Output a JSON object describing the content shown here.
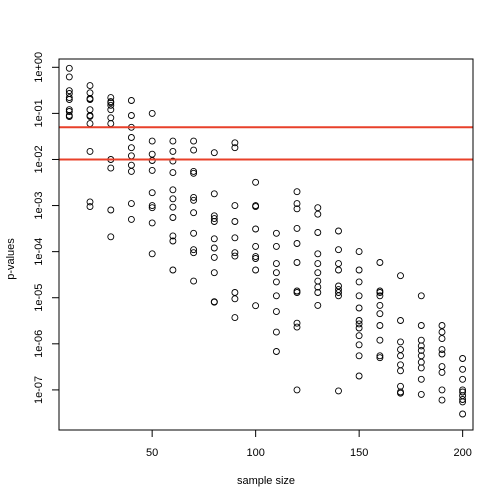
{
  "chart_data": {
    "type": "scatter",
    "title": "",
    "xlabel": "sample size",
    "ylabel": "p-values",
    "log_y": true,
    "xlim": [
      5,
      205
    ],
    "ylim_log10": [
      -7.87,
      0.18
    ],
    "x_ticks": [
      50,
      100,
      150,
      200
    ],
    "x_tick_labels": [
      "50",
      "100",
      "150",
      "200"
    ],
    "y_ticks_log10": [
      -7,
      -6,
      -5,
      -4,
      -3,
      -2,
      -1,
      0
    ],
    "y_tick_labels": [
      "1e-07",
      "1e-06",
      "1e-05",
      "1e-04",
      "1e-03",
      "1e-02",
      "1e-01",
      "1e+00"
    ],
    "grid": false,
    "reference_lines": [
      {
        "y": 0.05,
        "color": "#e8402a"
      },
      {
        "y": 0.01,
        "color": "#e8402a"
      }
    ],
    "point_color": "#000000",
    "points": [
      [
        10,
        0.95
      ],
      [
        10,
        0.62
      ],
      [
        10,
        0.31
      ],
      [
        10,
        0.27
      ],
      [
        10,
        0.22
      ],
      [
        10,
        0.2
      ],
      [
        10,
        0.12
      ],
      [
        10,
        0.11
      ],
      [
        10,
        0.09
      ],
      [
        10,
        0.085
      ],
      [
        20,
        0.4
      ],
      [
        20,
        0.28
      ],
      [
        20,
        0.21
      ],
      [
        20,
        0.2
      ],
      [
        20,
        0.12
      ],
      [
        20,
        0.09
      ],
      [
        20,
        0.086
      ],
      [
        20,
        0.06
      ],
      [
        20,
        0.015
      ],
      [
        20,
        0.0012
      ],
      [
        20,
        0.00095
      ],
      [
        30,
        0.22
      ],
      [
        30,
        0.18
      ],
      [
        30,
        0.17
      ],
      [
        30,
        0.15
      ],
      [
        30,
        0.12
      ],
      [
        30,
        0.08
      ],
      [
        30,
        0.06
      ],
      [
        30,
        0.01
      ],
      [
        30,
        0.0065
      ],
      [
        30,
        0.0008
      ],
      [
        30,
        0.00021
      ],
      [
        40,
        0.19
      ],
      [
        40,
        0.09
      ],
      [
        40,
        0.05
      ],
      [
        40,
        0.03
      ],
      [
        40,
        0.018
      ],
      [
        40,
        0.012
      ],
      [
        40,
        0.0075
      ],
      [
        40,
        0.0055
      ],
      [
        40,
        0.0011
      ],
      [
        40,
        0.0005
      ],
      [
        50,
        0.1
      ],
      [
        50,
        0.025
      ],
      [
        50,
        0.013
      ],
      [
        50,
        0.0095
      ],
      [
        50,
        0.0058
      ],
      [
        50,
        0.0019
      ],
      [
        50,
        0.001
      ],
      [
        50,
        0.0009
      ],
      [
        50,
        0.00042
      ],
      [
        50,
        9e-05
      ],
      [
        60,
        0.025
      ],
      [
        60,
        0.015
      ],
      [
        60,
        0.0092
      ],
      [
        60,
        0.0052
      ],
      [
        60,
        0.0022
      ],
      [
        60,
        0.0014
      ],
      [
        60,
        0.00092
      ],
      [
        60,
        0.00055
      ],
      [
        60,
        0.00022
      ],
      [
        60,
        0.00017
      ],
      [
        60,
        4e-05
      ],
      [
        70,
        0.025
      ],
      [
        70,
        0.016
      ],
      [
        70,
        0.0055
      ],
      [
        70,
        0.005
      ],
      [
        70,
        0.0015
      ],
      [
        70,
        0.0013
      ],
      [
        70,
        0.0007
      ],
      [
        70,
        0.00025
      ],
      [
        70,
        0.00011
      ],
      [
        70,
        9.5e-05
      ],
      [
        70,
        2.3e-05
      ],
      [
        80,
        0.014
      ],
      [
        80,
        0.0018
      ],
      [
        80,
        0.0006
      ],
      [
        80,
        0.00052
      ],
      [
        80,
        0.00045
      ],
      [
        80,
        0.00019
      ],
      [
        80,
        0.00012
      ],
      [
        80,
        7.5e-05
      ],
      [
        80,
        3.5e-05
      ],
      [
        80,
        8.2e-06
      ],
      [
        80,
        8e-06
      ],
      [
        90,
        0.023
      ],
      [
        90,
        0.018
      ],
      [
        90,
        0.001
      ],
      [
        90,
        0.00045
      ],
      [
        90,
        0.0002
      ],
      [
        90,
        9.5e-05
      ],
      [
        90,
        8e-05
      ],
      [
        90,
        1.3e-05
      ],
      [
        90,
        9.5e-06
      ],
      [
        90,
        3.7e-06
      ],
      [
        100,
        0.0032
      ],
      [
        100,
        0.001
      ],
      [
        100,
        0.00095
      ],
      [
        100,
        0.00031
      ],
      [
        100,
        0.00013
      ],
      [
        100,
        7.8e-05
      ],
      [
        100,
        7.1e-05
      ],
      [
        100,
        4e-05
      ],
      [
        100,
        6.7e-06
      ],
      [
        110,
        0.00025
      ],
      [
        110,
        0.00013
      ],
      [
        110,
        5.5e-05
      ],
      [
        110,
        3.5e-05
      ],
      [
        110,
        2.2e-05
      ],
      [
        110,
        1.1e-05
      ],
      [
        110,
        5e-06
      ],
      [
        110,
        1.8e-06
      ],
      [
        110,
        6.8e-07
      ],
      [
        120,
        0.002
      ],
      [
        120,
        0.0011
      ],
      [
        120,
        0.00085
      ],
      [
        120,
        0.00032
      ],
      [
        120,
        0.00015
      ],
      [
        120,
        5.8e-05
      ],
      [
        120,
        1.4e-05
      ],
      [
        120,
        1.3e-05
      ],
      [
        120,
        2.8e-06
      ],
      [
        120,
        2.3e-06
      ],
      [
        120,
        1e-07
      ],
      [
        130,
        0.0009
      ],
      [
        130,
        0.00065
      ],
      [
        130,
        0.00026
      ],
      [
        130,
        9e-05
      ],
      [
        130,
        5.5e-05
      ],
      [
        130,
        3.5e-05
      ],
      [
        130,
        2.3e-05
      ],
      [
        130,
        1.7e-05
      ],
      [
        130,
        1.3e-05
      ],
      [
        130,
        6.8e-06
      ],
      [
        140,
        0.00028
      ],
      [
        140,
        0.00011
      ],
      [
        140,
        5.5e-05
      ],
      [
        140,
        4e-05
      ],
      [
        140,
        1.8e-05
      ],
      [
        140,
        1.5e-05
      ],
      [
        140,
        1.3e-05
      ],
      [
        140,
        1.1e-05
      ],
      [
        140,
        9.5e-08
      ],
      [
        150,
        0.0001
      ],
      [
        150,
        4e-05
      ],
      [
        150,
        2.2e-05
      ],
      [
        150,
        1.1e-05
      ],
      [
        150,
        6e-06
      ],
      [
        150,
        3.2e-06
      ],
      [
        150,
        2.7e-06
      ],
      [
        150,
        2.2e-06
      ],
      [
        150,
        1.5e-06
      ],
      [
        150,
        9.5e-07
      ],
      [
        150,
        5.5e-07
      ],
      [
        150,
        2e-07
      ],
      [
        160,
        5.8e-05
      ],
      [
        160,
        1.4e-05
      ],
      [
        160,
        1.3e-05
      ],
      [
        160,
        1.1e-05
      ],
      [
        160,
        6.8e-06
      ],
      [
        160,
        4.5e-06
      ],
      [
        160,
        2.5e-06
      ],
      [
        160,
        1.2e-06
      ],
      [
        160,
        5.5e-07
      ],
      [
        160,
        5e-07
      ],
      [
        170,
        3e-05
      ],
      [
        170,
        3.2e-06
      ],
      [
        170,
        1.1e-06
      ],
      [
        170,
        7.5e-07
      ],
      [
        170,
        5.5e-07
      ],
      [
        170,
        3.5e-07
      ],
      [
        170,
        2.6e-07
      ],
      [
        170,
        1.2e-07
      ],
      [
        170,
        9e-08
      ],
      [
        170,
        8.5e-08
      ],
      [
        180,
        1.1e-05
      ],
      [
        180,
        2.5e-06
      ],
      [
        180,
        1.2e-06
      ],
      [
        180,
        9e-07
      ],
      [
        180,
        7.2e-07
      ],
      [
        180,
        5.5e-07
      ],
      [
        180,
        4e-07
      ],
      [
        180,
        3e-07
      ],
      [
        180,
        1.7e-07
      ],
      [
        180,
        8e-08
      ],
      [
        190,
        2.5e-06
      ],
      [
        190,
        1.8e-06
      ],
      [
        190,
        1.3e-06
      ],
      [
        190,
        7.5e-07
      ],
      [
        190,
        6e-07
      ],
      [
        190,
        3.2e-07
      ],
      [
        190,
        2.4e-07
      ],
      [
        190,
        1e-07
      ],
      [
        190,
        6e-08
      ],
      [
        200,
        4.8e-07
      ],
      [
        200,
        2.8e-07
      ],
      [
        200,
        1.7e-07
      ],
      [
        200,
        1e-07
      ],
      [
        200,
        9e-08
      ],
      [
        200,
        7.5e-08
      ],
      [
        200,
        6.2e-08
      ],
      [
        200,
        5.5e-08
      ],
      [
        200,
        3e-08
      ]
    ]
  }
}
